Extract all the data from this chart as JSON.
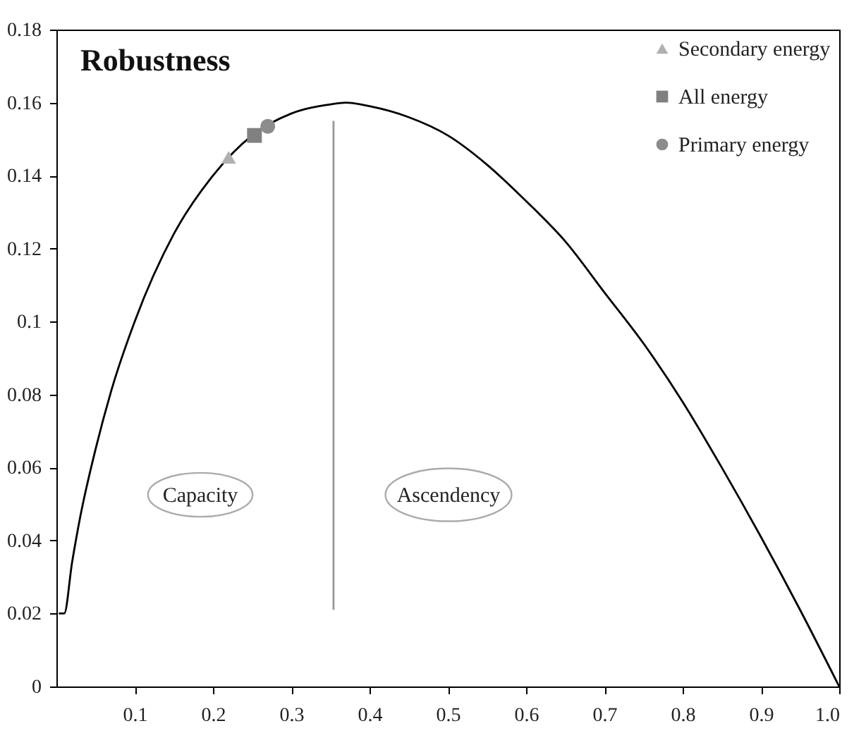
{
  "chart_data": {
    "type": "line",
    "title": "Robustness",
    "xlim": [
      0,
      1
    ],
    "ylim": [
      0,
      0.18
    ],
    "xticks": [
      0.1,
      0.2,
      0.3,
      0.4,
      0.5,
      0.6,
      0.7,
      0.8,
      0.9,
      {
        "value": 1,
        "label": "1.0"
      }
    ],
    "yticks": [
      0,
      0.02,
      0.04,
      0.06,
      0.08,
      0.1,
      0.12,
      0.14,
      0.16,
      0.18
    ],
    "grid": false,
    "legend": "top right",
    "series": [
      {
        "color": "#000000",
        "marker": "none",
        "x": [
          0.003,
          0.01,
          0.02,
          0.03,
          0.05,
          0.07,
          0.1,
          0.15,
          0.2,
          0.25,
          0.3,
          0.35,
          0.37,
          0.4,
          0.45,
          0.5,
          0.55,
          0.6,
          0.65,
          0.7,
          0.75,
          0.8,
          0.85,
          0.9,
          0.95,
          1.0
        ],
        "values": [
          0.02,
          0.02,
          0.034,
          0.046,
          0.065,
          0.081,
          0.1,
          0.124,
          0.14,
          0.151,
          0.157,
          0.1595,
          0.16,
          0.159,
          0.156,
          0.151,
          0.143,
          0.133,
          0.122,
          0.108,
          0.094,
          0.078,
          0.06,
          0.041,
          0.021,
          0
        ]
      },
      {
        "type": "line",
        "color": "#999999",
        "marker": "none",
        "x": [
          0.354,
          0.354
        ],
        "values": [
          0.021,
          0.155
        ]
      },
      {
        "type": "scatter",
        "name": "Secondary energy",
        "color": "#b0b0b0",
        "marker": "triangle",
        "x": [
          0.22
        ],
        "values": [
          0.145
        ]
      },
      {
        "type": "scatter",
        "name": "All energy",
        "color": "#808080",
        "marker": "square",
        "x": [
          0.253
        ],
        "values": [
          0.151
        ]
      },
      {
        "type": "scatter",
        "name": "Primary energy",
        "color": "#8c8c8c",
        "marker": "circle",
        "x": [
          0.27
        ],
        "values": [
          0.1535
        ]
      }
    ],
    "annotations": [
      "Capacity",
      "Ascendency"
    ]
  }
}
